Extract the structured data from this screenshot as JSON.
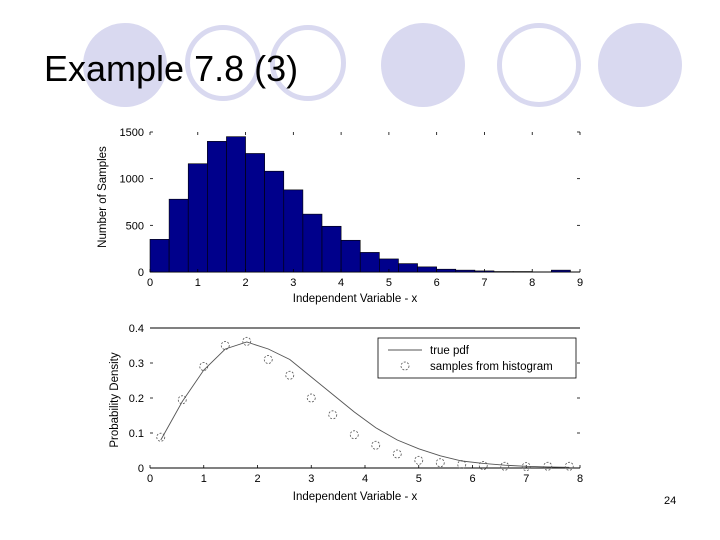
{
  "slide": {
    "title": "Example 7.8 (3)",
    "page_number": "24",
    "colors": {
      "circle_fill": "#D9D9F0",
      "circle_ring": "#D9D9F0",
      "bar_fill": "#00008B"
    }
  },
  "chart_data": [
    {
      "type": "bar",
      "xlabel": "Independent Variable - x",
      "ylabel": "Number of Samples",
      "xlim": [
        0,
        9
      ],
      "ylim": [
        0,
        1500
      ],
      "xticks": [
        "0",
        "1",
        "2",
        "3",
        "4",
        "5",
        "6",
        "7",
        "8",
        "9"
      ],
      "yticks": [
        "0",
        "500",
        "1000",
        "1500"
      ],
      "bin_width": 0.4,
      "bin_start": 0,
      "values": [
        350,
        780,
        1160,
        1400,
        1450,
        1270,
        1080,
        880,
        620,
        490,
        340,
        210,
        140,
        90,
        55,
        30,
        20,
        12,
        5,
        5,
        2,
        20,
        0
      ],
      "bar_color": "#00008B"
    },
    {
      "type": "line",
      "xlabel": "Independent Variable - x",
      "ylabel": "Probability Density",
      "xlim": [
        0,
        8
      ],
      "ylim": [
        0,
        0.4
      ],
      "xticks": [
        "0",
        "1",
        "2",
        "3",
        "4",
        "5",
        "6",
        "7",
        "8"
      ],
      "yticks": [
        "0",
        "0.1",
        "0.2",
        "0.3",
        "0.4"
      ],
      "legend_position": "top-right",
      "series": [
        {
          "name": "true pdf",
          "style": "line",
          "x": [
            0.2,
            0.6,
            1.0,
            1.4,
            1.8,
            2.2,
            2.6,
            3.0,
            3.4,
            3.8,
            4.2,
            4.6,
            5.0,
            5.4,
            5.8,
            6.2,
            6.6,
            7.0,
            7.4,
            7.8
          ],
          "y": [
            0.08,
            0.19,
            0.28,
            0.34,
            0.36,
            0.34,
            0.31,
            0.26,
            0.21,
            0.16,
            0.115,
            0.08,
            0.055,
            0.035,
            0.02,
            0.013,
            0.008,
            0.005,
            0.003,
            0.002
          ]
        },
        {
          "name": "samples from histogram",
          "style": "circle",
          "x": [
            0.2,
            0.6,
            1.0,
            1.4,
            1.8,
            2.2,
            2.6,
            3.0,
            3.4,
            3.8,
            4.2,
            4.6,
            5.0,
            5.4,
            5.8,
            6.2,
            6.6,
            7.0,
            7.4,
            7.8
          ],
          "y": [
            0.088,
            0.195,
            0.29,
            0.35,
            0.362,
            0.31,
            0.265,
            0.2,
            0.152,
            0.095,
            0.065,
            0.04,
            0.022,
            0.015,
            0.01,
            0.007,
            0.005,
            0.004,
            0.005,
            0.005
          ]
        }
      ]
    }
  ]
}
